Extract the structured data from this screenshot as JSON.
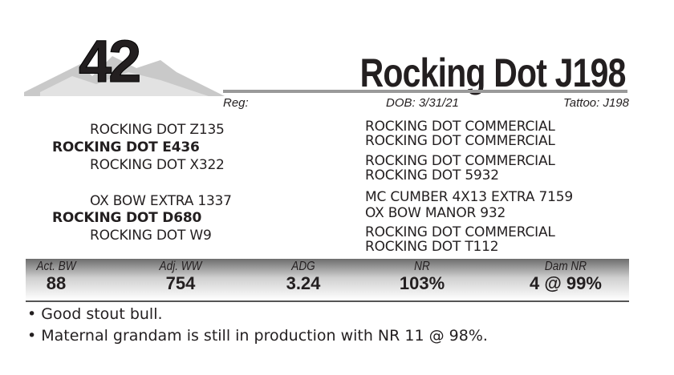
{
  "lot": {
    "number": "42",
    "name": "Rocking Dot J198"
  },
  "meta": {
    "reg": "Reg:",
    "dob": "DOB:  3/31/21",
    "tattoo": "Tattoo:  J198"
  },
  "pedigree": {
    "sire": {
      "name": "ROCKING DOT E436",
      "sire": "ROCKING DOT Z135",
      "dam": "ROCKING DOT X322",
      "sire_sire": "ROCKING DOT COMMERCIAL",
      "sire_dam": "ROCKING DOT COMMERCIAL",
      "dam_sire": "ROCKING DOT COMMERCIAL",
      "dam_dam": "ROCKING DOT 5932"
    },
    "dam": {
      "name": "ROCKING DOT D680",
      "sire": "OX BOW EXTRA 1337",
      "dam": "ROCKING DOT W9",
      "sire_sire": "MC CUMBER 4X13 EXTRA 7159",
      "sire_dam": "OX BOW MANOR 932",
      "dam_sire": "ROCKING DOT COMMERCIAL",
      "dam_dam": "ROCKING DOT T112"
    }
  },
  "stats": [
    {
      "label": "Act. BW",
      "value": "88"
    },
    {
      "label": "Adj. WW",
      "value": "754"
    },
    {
      "label": "ADG",
      "value": "3.24"
    },
    {
      "label": "NR",
      "value": "103%"
    },
    {
      "label": "Dam NR",
      "value": "4 @ 99%"
    }
  ],
  "notes": [
    "• Good stout bull.",
    "• Maternal grandam is still in production with NR 11 @ 98%."
  ]
}
